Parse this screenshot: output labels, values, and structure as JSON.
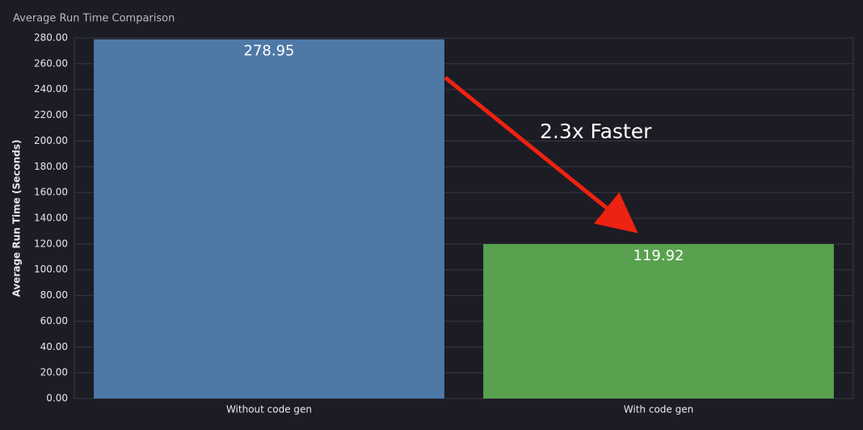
{
  "chart_data": {
    "type": "bar",
    "title": "Average Run Time Comparison",
    "y_label": "Average Run Time (Seconds)",
    "categories": [
      "Without code gen",
      "With code gen"
    ],
    "values": [
      278.95,
      119.92
    ],
    "colors": [
      "#4e79a7",
      "#59a14f"
    ],
    "annotation": "2.3x Faster",
    "ylim": [
      0,
      280
    ],
    "yticks": [
      {
        "value": 0,
        "label": "0.00"
      },
      {
        "value": 20,
        "label": "20.00"
      },
      {
        "value": 40,
        "label": "40.00"
      },
      {
        "value": 60,
        "label": "60.00"
      },
      {
        "value": 80,
        "label": "80.00"
      },
      {
        "value": 100,
        "label": "100.00"
      },
      {
        "value": 120,
        "label": "120.00"
      },
      {
        "value": 140,
        "label": "140.00"
      },
      {
        "value": 160,
        "label": "160.00"
      },
      {
        "value": 180,
        "label": "180.00"
      },
      {
        "value": 200,
        "label": "200.00"
      },
      {
        "value": 220,
        "label": "220.00"
      },
      {
        "value": 240,
        "label": "240.00"
      },
      {
        "value": 260,
        "label": "260.00"
      },
      {
        "value": 280,
        "label": "280.00"
      }
    ],
    "grid": true
  }
}
